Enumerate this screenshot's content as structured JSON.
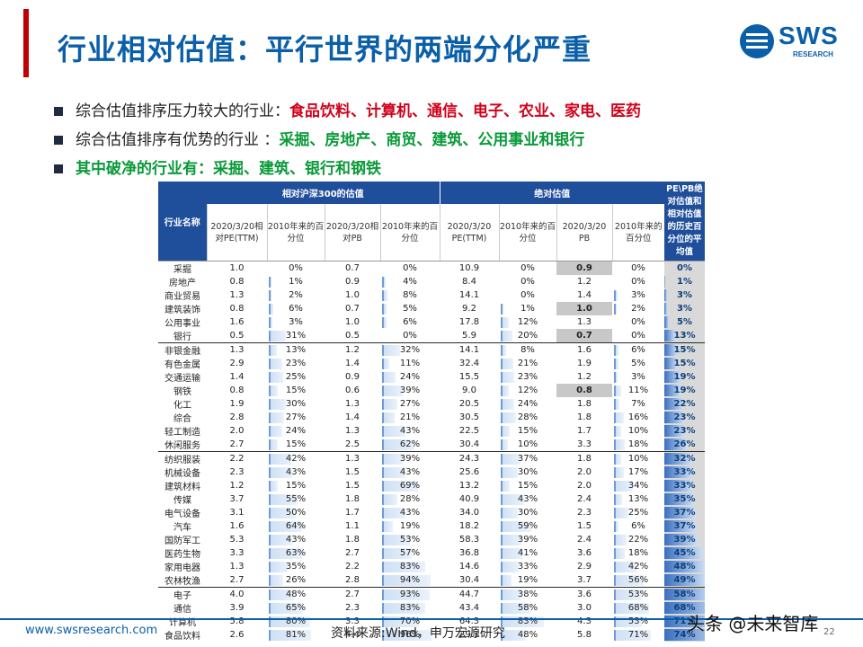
{
  "header": {
    "title": "行业相对估值：平行世界的两端分化严重",
    "logo_text": "SWS",
    "logo_sub": "RESEARCH"
  },
  "bullets": [
    {
      "prefix": "综合估值排序压力较大的行业：",
      "highlight": "食品饮料、计算机、通信、电子、农业、家电、医药"
    },
    {
      "prefix": "综合估值排序有优势的行业 ：",
      "highlight": "采掘、房地产、商贸、建筑、公用事业和银行"
    },
    {
      "prefix": "",
      "highlight": "其中破净的行业有：采掘、建筑、银行和钢铁"
    }
  ],
  "table": {
    "group_relative": "相对沪深300的估值",
    "group_absolute": "绝对估值",
    "col_name": "行业名称",
    "col_avg": "PE\\PB绝对估值和相对估值的历史百分位的平均值",
    "sub_headers": [
      "2020/3/20相对PE(TTM)",
      "2010年来的百分位",
      "2020/3/20相对PB",
      "2010年来的百分位",
      "2020/3/20 PE(TTM)",
      "2010年来的百分位",
      "2020/3/20 PB",
      "2010年来的百分位"
    ],
    "rows": [
      {
        "name": "采掘",
        "rpe": "1.0",
        "rpe_p": "0%",
        "rpb": "0.7",
        "rpb_p": "0%",
        "pe": "10.9",
        "pe_p": "0%",
        "pb": "0.9",
        "pb_p": "0%",
        "avg": "0%",
        "pb_hl": true
      },
      {
        "name": "房地产",
        "rpe": "0.8",
        "rpe_p": "1%",
        "rpb": "0.9",
        "rpb_p": "4%",
        "pe": "8.4",
        "pe_p": "0%",
        "pb": "1.2",
        "pb_p": "0%",
        "avg": "1%"
      },
      {
        "name": "商业贸易",
        "rpe": "1.3",
        "rpe_p": "2%",
        "rpb": "1.0",
        "rpb_p": "8%",
        "pe": "14.1",
        "pe_p": "0%",
        "pb": "1.4",
        "pb_p": "3%",
        "avg": "3%"
      },
      {
        "name": "建筑装饰",
        "rpe": "0.8",
        "rpe_p": "6%",
        "rpb": "0.7",
        "rpb_p": "5%",
        "pe": "9.2",
        "pe_p": "1%",
        "pb": "1.0",
        "pb_p": "2%",
        "avg": "3%",
        "pb_hl": true
      },
      {
        "name": "公用事业",
        "rpe": "1.6",
        "rpe_p": "3%",
        "rpb": "1.0",
        "rpb_p": "6%",
        "pe": "17.8",
        "pe_p": "12%",
        "pb": "1.3",
        "pb_p": "0%",
        "avg": "5%"
      },
      {
        "name": "银行",
        "rpe": "0.5",
        "rpe_p": "31%",
        "rpb": "0.5",
        "rpb_p": "0%",
        "pe": "5.9",
        "pe_p": "20%",
        "pb": "0.7",
        "pb_p": "0%",
        "avg": "13%",
        "pb_hl": true
      },
      {
        "name": "非银金融",
        "rpe": "1.3",
        "rpe_p": "13%",
        "rpb": "1.2",
        "rpb_p": "32%",
        "pe": "14.1",
        "pe_p": "8%",
        "pb": "1.6",
        "pb_p": "6%",
        "avg": "15%",
        "sep": true
      },
      {
        "name": "有色金属",
        "rpe": "2.9",
        "rpe_p": "23%",
        "rpb": "1.4",
        "rpb_p": "11%",
        "pe": "32.4",
        "pe_p": "21%",
        "pb": "1.9",
        "pb_p": "5%",
        "avg": "15%"
      },
      {
        "name": "交通运输",
        "rpe": "1.4",
        "rpe_p": "25%",
        "rpb": "0.9",
        "rpb_p": "24%",
        "pe": "15.5",
        "pe_p": "23%",
        "pb": "1.2",
        "pb_p": "3%",
        "avg": "19%"
      },
      {
        "name": "钢铁",
        "rpe": "0.8",
        "rpe_p": "15%",
        "rpb": "0.6",
        "rpb_p": "39%",
        "pe": "9.0",
        "pe_p": "12%",
        "pb": "0.8",
        "pb_p": "11%",
        "avg": "19%",
        "pb_hl": true
      },
      {
        "name": "化工",
        "rpe": "1.9",
        "rpe_p": "30%",
        "rpb": "1.3",
        "rpb_p": "27%",
        "pe": "20.5",
        "pe_p": "24%",
        "pb": "1.8",
        "pb_p": "7%",
        "avg": "22%"
      },
      {
        "name": "综合",
        "rpe": "2.8",
        "rpe_p": "27%",
        "rpb": "1.4",
        "rpb_p": "21%",
        "pe": "30.5",
        "pe_p": "28%",
        "pb": "1.8",
        "pb_p": "16%",
        "avg": "23%"
      },
      {
        "name": "轻工制造",
        "rpe": "2.0",
        "rpe_p": "24%",
        "rpb": "1.3",
        "rpb_p": "43%",
        "pe": "22.5",
        "pe_p": "15%",
        "pb": "1.7",
        "pb_p": "10%",
        "avg": "23%"
      },
      {
        "name": "休闲服务",
        "rpe": "2.7",
        "rpe_p": "15%",
        "rpb": "2.5",
        "rpb_p": "62%",
        "pe": "30.4",
        "pe_p": "10%",
        "pb": "3.3",
        "pb_p": "18%",
        "avg": "26%"
      },
      {
        "name": "纺织服装",
        "rpe": "2.2",
        "rpe_p": "42%",
        "rpb": "1.3",
        "rpb_p": "39%",
        "pe": "24.3",
        "pe_p": "37%",
        "pb": "1.8",
        "pb_p": "10%",
        "avg": "32%",
        "sep": true
      },
      {
        "name": "机械设备",
        "rpe": "2.3",
        "rpe_p": "43%",
        "rpb": "1.5",
        "rpb_p": "43%",
        "pe": "25.6",
        "pe_p": "30%",
        "pb": "2.0",
        "pb_p": "17%",
        "avg": "33%"
      },
      {
        "name": "建筑材料",
        "rpe": "1.2",
        "rpe_p": "15%",
        "rpb": "1.5",
        "rpb_p": "69%",
        "pe": "13.2",
        "pe_p": "15%",
        "pb": "2.0",
        "pb_p": "34%",
        "avg": "33%"
      },
      {
        "name": "传媒",
        "rpe": "3.7",
        "rpe_p": "55%",
        "rpb": "1.8",
        "rpb_p": "28%",
        "pe": "40.9",
        "pe_p": "43%",
        "pb": "2.4",
        "pb_p": "13%",
        "avg": "35%"
      },
      {
        "name": "电气设备",
        "rpe": "3.1",
        "rpe_p": "50%",
        "rpb": "1.7",
        "rpb_p": "43%",
        "pe": "34.0",
        "pe_p": "30%",
        "pb": "2.3",
        "pb_p": "25%",
        "avg": "37%"
      },
      {
        "name": "汽车",
        "rpe": "1.6",
        "rpe_p": "64%",
        "rpb": "1.1",
        "rpb_p": "19%",
        "pe": "18.2",
        "pe_p": "59%",
        "pb": "1.5",
        "pb_p": "6%",
        "avg": "37%"
      },
      {
        "name": "国防军工",
        "rpe": "5.3",
        "rpe_p": "43%",
        "rpb": "1.8",
        "rpb_p": "53%",
        "pe": "58.3",
        "pe_p": "39%",
        "pb": "2.4",
        "pb_p": "22%",
        "avg": "39%"
      },
      {
        "name": "医药生物",
        "rpe": "3.3",
        "rpe_p": "63%",
        "rpb": "2.7",
        "rpb_p": "57%",
        "pe": "36.8",
        "pe_p": "41%",
        "pb": "3.6",
        "pb_p": "18%",
        "avg": "45%"
      },
      {
        "name": "家用电器",
        "rpe": "1.3",
        "rpe_p": "35%",
        "rpb": "2.2",
        "rpb_p": "83%",
        "pe": "14.6",
        "pe_p": "33%",
        "pb": "2.9",
        "pb_p": "42%",
        "avg": "48%"
      },
      {
        "name": "农林牧渔",
        "rpe": "2.7",
        "rpe_p": "26%",
        "rpb": "2.8",
        "rpb_p": "94%",
        "pe": "30.4",
        "pe_p": "19%",
        "pb": "3.7",
        "pb_p": "56%",
        "avg": "49%"
      },
      {
        "name": "电子",
        "rpe": "4.0",
        "rpe_p": "48%",
        "rpb": "2.7",
        "rpb_p": "93%",
        "pe": "44.7",
        "pe_p": "38%",
        "pb": "3.6",
        "pb_p": "53%",
        "avg": "58%",
        "sep": true
      },
      {
        "name": "通信",
        "rpe": "3.9",
        "rpe_p": "65%",
        "rpb": "2.3",
        "rpb_p": "83%",
        "pe": "43.4",
        "pe_p": "58%",
        "pb": "3.0",
        "pb_p": "68%",
        "avg": "68%"
      },
      {
        "name": "计算机",
        "rpe": "5.8",
        "rpe_p": "80%",
        "rpb": "3.3",
        "rpb_p": "70%",
        "pe": "64.3",
        "pe_p": "83%",
        "pb": "4.3",
        "pb_p": "53%",
        "avg": "71%"
      },
      {
        "name": "食品饮料",
        "rpe": "2.6",
        "rpe_p": "81%",
        "rpb": "4.4",
        "rpb_p": "96%",
        "pe": "29.1",
        "pe_p": "48%",
        "pb": "5.8",
        "pb_p": "71%",
        "avg": "74%"
      }
    ]
  },
  "footer": {
    "url": "www.swsresearch.com",
    "source": "资料来源:Wind，申万宏源研究",
    "page": "22",
    "watermark": "头条 @未来智库"
  },
  "colors": {
    "title": "#0b5fa8",
    "accent_red": "#d0021b",
    "accent_green": "#0a9a3a",
    "table_header": "#1f4e9b"
  }
}
